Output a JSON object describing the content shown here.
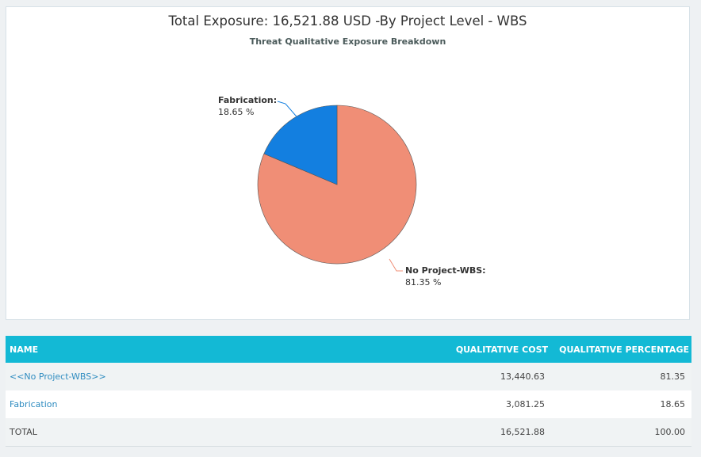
{
  "chart_data": {
    "type": "pie",
    "title": "Total Exposure: 16,521.88 USD -By Project Level - WBS",
    "subtitle": "Threat Qualitative Exposure Breakdown",
    "slices": [
      {
        "name": "No Project-WBS",
        "value": 81.35,
        "value_label": "81.35 %",
        "color": "#f08e76"
      },
      {
        "name": "Fabrication",
        "value": 18.65,
        "value_label": "18.65 %",
        "color": "#137fe0"
      }
    ]
  },
  "table": {
    "headers": {
      "name": "NAME",
      "cost": "QUALITATIVE COST",
      "percentage": "QUALITATIVE PERCENTAGE"
    },
    "rows": [
      {
        "name": "<<No Project-WBS>>",
        "cost": "13,440.63",
        "percentage": "81.35"
      },
      {
        "name": "Fabrication",
        "cost": "3,081.25",
        "percentage": "18.65"
      }
    ],
    "total": {
      "name": "TOTAL",
      "cost": "16,521.88",
      "percentage": "100.00"
    }
  }
}
